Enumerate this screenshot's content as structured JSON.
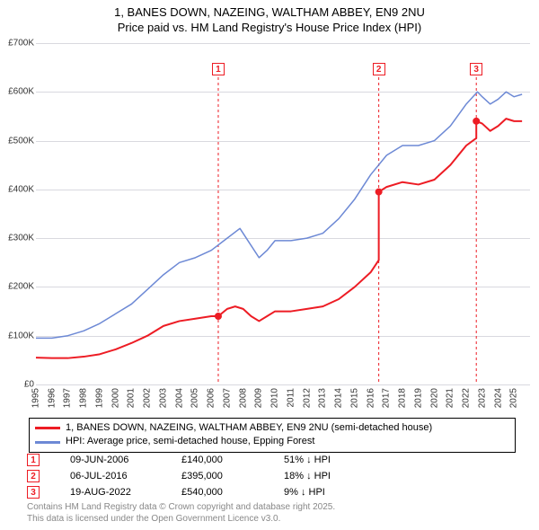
{
  "title": {
    "line1": "1, BANES DOWN, NAZEING, WALTHAM ABBEY, EN9 2NU",
    "line2": "Price paid vs. HM Land Registry's House Price Index (HPI)",
    "fontsize": 13,
    "color": "#000000"
  },
  "chart": {
    "type": "line",
    "background_color": "#ffffff",
    "grid_color": "#d9d9df",
    "x_axis": {
      "min": 1995,
      "max": 2026,
      "ticks": [
        1995,
        1996,
        1997,
        1998,
        1999,
        2000,
        2001,
        2002,
        2003,
        2004,
        2005,
        2006,
        2007,
        2008,
        2009,
        2010,
        2011,
        2012,
        2013,
        2014,
        2015,
        2016,
        2017,
        2018,
        2019,
        2020,
        2021,
        2022,
        2023,
        2024,
        2025
      ],
      "label_fontsize": 10
    },
    "y_axis": {
      "min": 0,
      "max": 700000,
      "ticks": [
        0,
        100000,
        200000,
        300000,
        400000,
        500000,
        600000,
        700000
      ],
      "tick_labels": [
        "£0",
        "£100K",
        "£200K",
        "£300K",
        "£400K",
        "£500K",
        "£600K",
        "£700K"
      ],
      "label_fontsize": 10
    },
    "series": [
      {
        "name": "price_paid",
        "label": "1, BANES DOWN, NAZEING, WALTHAM ABBEY, EN9 2NU (semi-detached house)",
        "color": "#ed1c24",
        "line_width": 2,
        "points": [
          [
            1995.0,
            55000
          ],
          [
            1996.0,
            54000
          ],
          [
            1997.0,
            54000
          ],
          [
            1998.0,
            57000
          ],
          [
            1999.0,
            62000
          ],
          [
            2000.0,
            72000
          ],
          [
            2001.0,
            85000
          ],
          [
            2002.0,
            100000
          ],
          [
            2003.0,
            120000
          ],
          [
            2004.0,
            130000
          ],
          [
            2005.0,
            135000
          ],
          [
            2006.0,
            140000
          ],
          [
            2006.44,
            140000
          ],
          [
            2006.44,
            140000
          ],
          [
            2007.0,
            155000
          ],
          [
            2007.5,
            160000
          ],
          [
            2008.0,
            155000
          ],
          [
            2008.5,
            140000
          ],
          [
            2009.0,
            130000
          ],
          [
            2009.5,
            140000
          ],
          [
            2010.0,
            150000
          ],
          [
            2011.0,
            150000
          ],
          [
            2012.0,
            155000
          ],
          [
            2013.0,
            160000
          ],
          [
            2014.0,
            175000
          ],
          [
            2015.0,
            200000
          ],
          [
            2016.0,
            230000
          ],
          [
            2016.51,
            255000
          ],
          [
            2016.51,
            395000
          ],
          [
            2017.0,
            405000
          ],
          [
            2018.0,
            415000
          ],
          [
            2019.0,
            410000
          ],
          [
            2020.0,
            420000
          ],
          [
            2021.0,
            450000
          ],
          [
            2022.0,
            490000
          ],
          [
            2022.63,
            505000
          ],
          [
            2022.63,
            540000
          ],
          [
            2023.0,
            535000
          ],
          [
            2023.5,
            520000
          ],
          [
            2024.0,
            530000
          ],
          [
            2024.5,
            545000
          ],
          [
            2025.0,
            540000
          ],
          [
            2025.5,
            540000
          ]
        ],
        "markers": [
          {
            "x": 2006.44,
            "y": 140000
          },
          {
            "x": 2016.51,
            "y": 395000
          },
          {
            "x": 2022.63,
            "y": 540000
          }
        ]
      },
      {
        "name": "hpi",
        "label": "HPI: Average price, semi-detached house, Epping Forest",
        "color": "#6d89d5",
        "line_width": 1.5,
        "points": [
          [
            1995.0,
            95000
          ],
          [
            1996.0,
            95000
          ],
          [
            1997.0,
            100000
          ],
          [
            1998.0,
            110000
          ],
          [
            1999.0,
            125000
          ],
          [
            2000.0,
            145000
          ],
          [
            2001.0,
            165000
          ],
          [
            2002.0,
            195000
          ],
          [
            2003.0,
            225000
          ],
          [
            2004.0,
            250000
          ],
          [
            2005.0,
            260000
          ],
          [
            2006.0,
            275000
          ],
          [
            2007.0,
            300000
          ],
          [
            2007.8,
            320000
          ],
          [
            2008.5,
            285000
          ],
          [
            2009.0,
            260000
          ],
          [
            2009.5,
            275000
          ],
          [
            2010.0,
            295000
          ],
          [
            2011.0,
            295000
          ],
          [
            2012.0,
            300000
          ],
          [
            2013.0,
            310000
          ],
          [
            2014.0,
            340000
          ],
          [
            2015.0,
            380000
          ],
          [
            2016.0,
            430000
          ],
          [
            2017.0,
            470000
          ],
          [
            2018.0,
            490000
          ],
          [
            2019.0,
            490000
          ],
          [
            2020.0,
            500000
          ],
          [
            2021.0,
            530000
          ],
          [
            2022.0,
            575000
          ],
          [
            2022.7,
            600000
          ],
          [
            2023.0,
            590000
          ],
          [
            2023.5,
            575000
          ],
          [
            2024.0,
            585000
          ],
          [
            2024.5,
            600000
          ],
          [
            2025.0,
            590000
          ],
          [
            2025.5,
            595000
          ]
        ]
      }
    ],
    "annotations": [
      {
        "n": "1",
        "x": 2006.44,
        "y_top": 630000
      },
      {
        "n": "2",
        "x": 2016.51,
        "y_top": 630000
      },
      {
        "n": "3",
        "x": 2022.63,
        "y_top": 630000
      }
    ]
  },
  "legend": {
    "border_color": "#000000",
    "fontsize": 11
  },
  "sales_table": {
    "rows": [
      {
        "n": "1",
        "date": "09-JUN-2006",
        "price": "£140,000",
        "delta": "51% ↓ HPI"
      },
      {
        "n": "2",
        "date": "06-JUL-2016",
        "price": "£395,000",
        "delta": "18% ↓ HPI"
      },
      {
        "n": "3",
        "date": "19-AUG-2022",
        "price": "£540,000",
        "delta": "9% ↓ HPI"
      }
    ],
    "marker_color": "#ed1c24",
    "fontsize": 11
  },
  "footer": {
    "line1": "Contains HM Land Registry data © Crown copyright and database right 2025.",
    "line2": "This data is licensed under the Open Government Licence v3.0.",
    "color": "#888888",
    "fontsize": 10
  }
}
